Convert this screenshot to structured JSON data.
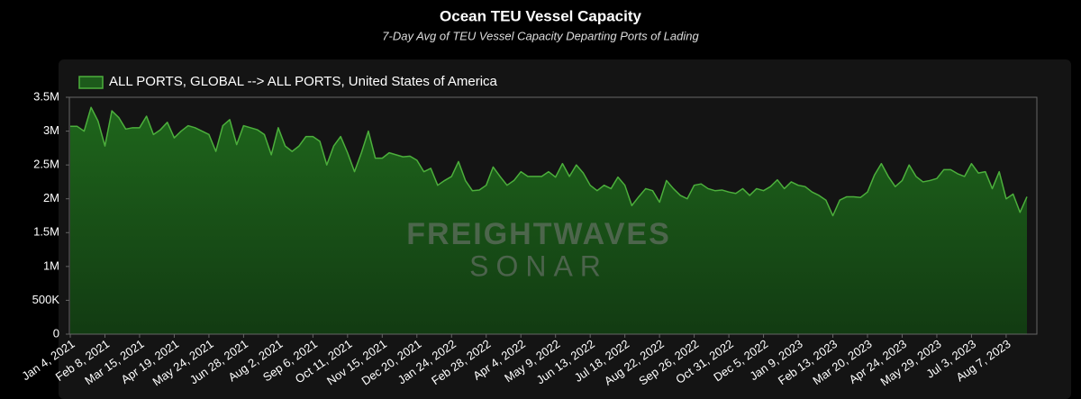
{
  "chart_data": {
    "type": "area",
    "title": "Ocean TEU Vessel Capacity",
    "subtitle": "7-Day Avg of TEU Vessel Capacity Departing Ports of Lading",
    "watermark": [
      "FREIGHTWAVES",
      "SONAR"
    ],
    "ylim": [
      0,
      3500000
    ],
    "yticks": [
      0,
      {
        "value": 500000,
        "label": "500K"
      },
      {
        "value": 1000000,
        "label": "1M"
      },
      {
        "value": 1500000,
        "label": "1.5M"
      },
      {
        "value": 2000000,
        "label": "2M"
      },
      {
        "value": 2500000,
        "label": "2.5M"
      },
      {
        "value": 3000000,
        "label": "3M"
      },
      {
        "value": 3500000,
        "label": "3.5M"
      }
    ],
    "grid": false,
    "legend": "top-left",
    "categories": [
      "Jan 4, 2021",
      null,
      null,
      null,
      null,
      "Feb 8, 2021",
      null,
      null,
      null,
      null,
      "Mar 15, 2021",
      null,
      null,
      null,
      null,
      "Apr 19, 2021",
      null,
      null,
      null,
      null,
      "May 24, 2021",
      null,
      null,
      null,
      null,
      "Jun 28, 2021",
      null,
      null,
      null,
      null,
      "Aug 2, 2021",
      null,
      null,
      null,
      null,
      "Sep 6, 2021",
      null,
      null,
      null,
      null,
      "Oct 11, 2021",
      null,
      null,
      null,
      null,
      "Nov 15, 2021",
      null,
      null,
      null,
      null,
      "Dec 20, 2021",
      null,
      null,
      null,
      null,
      "Jan 24, 2022",
      null,
      null,
      null,
      null,
      "Feb 28, 2022",
      null,
      null,
      null,
      null,
      "Apr 4, 2022",
      null,
      null,
      null,
      null,
      "May 9, 2022",
      null,
      null,
      null,
      null,
      "Jun 13, 2022",
      null,
      null,
      null,
      null,
      "Jul 18, 2022",
      null,
      null,
      null,
      null,
      "Aug 22, 2022",
      null,
      null,
      null,
      null,
      "Sep 26, 2022",
      null,
      null,
      null,
      null,
      "Oct 31, 2022",
      null,
      null,
      null,
      null,
      "Dec 5, 2022",
      null,
      null,
      null,
      null,
      "Jan 9, 2023",
      null,
      null,
      null,
      null,
      "Feb 13, 2023",
      null,
      null,
      null,
      null,
      "Mar 20, 2023",
      null,
      null,
      null,
      null,
      "Apr 24, 2023",
      null,
      null,
      null,
      null,
      "May 29, 2023",
      null,
      null,
      null,
      null,
      "Jul 3, 2023",
      null,
      null,
      null,
      null,
      "Aug 7, 2023",
      null,
      null,
      null
    ],
    "series": [
      {
        "name": "ALL PORTS, GLOBAL --> ALL PORTS, United States of America",
        "color": "#4caf3c",
        "fill": "#1d5a1b",
        "values": [
          3070000,
          3070000,
          3000000,
          3350000,
          3150000,
          2780000,
          3300000,
          3200000,
          3030000,
          3050000,
          3050000,
          3220000,
          2950000,
          3020000,
          3130000,
          2900000,
          3000000,
          3080000,
          3050000,
          3000000,
          2950000,
          2700000,
          3080000,
          3170000,
          2800000,
          3080000,
          3050000,
          3020000,
          2950000,
          2650000,
          3050000,
          2780000,
          2700000,
          2780000,
          2920000,
          2920000,
          2850000,
          2500000,
          2780000,
          2920000,
          2680000,
          2400000,
          2680000,
          3000000,
          2600000,
          2600000,
          2680000,
          2650000,
          2620000,
          2630000,
          2570000,
          2400000,
          2450000,
          2200000,
          2270000,
          2330000,
          2550000,
          2270000,
          2120000,
          2130000,
          2200000,
          2470000,
          2330000,
          2200000,
          2270000,
          2400000,
          2330000,
          2330000,
          2330000,
          2400000,
          2320000,
          2520000,
          2330000,
          2500000,
          2380000,
          2200000,
          2120000,
          2200000,
          2150000,
          2320000,
          2200000,
          1900000,
          2030000,
          2150000,
          2120000,
          1950000,
          2270000,
          2150000,
          2050000,
          2000000,
          2200000,
          2220000,
          2150000,
          2120000,
          2130000,
          2100000,
          2080000,
          2150000,
          2050000,
          2150000,
          2120000,
          2180000,
          2280000,
          2150000,
          2250000,
          2200000,
          2180000,
          2100000,
          2050000,
          1980000,
          1750000,
          1980000,
          2030000,
          2030000,
          2020000,
          2100000,
          2350000,
          2520000,
          2330000,
          2180000,
          2270000,
          2500000,
          2330000,
          2250000,
          2270000,
          2300000,
          2430000,
          2430000,
          2370000,
          2330000,
          2520000,
          2380000,
          2400000,
          2150000,
          2400000,
          2000000,
          2070000,
          1800000,
          2030000
        ]
      }
    ]
  }
}
